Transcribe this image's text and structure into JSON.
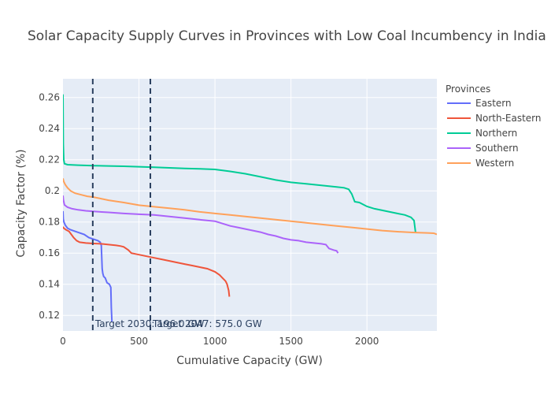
{
  "chart_data": {
    "type": "line",
    "title": "Solar Capacity Supply Curves in Provinces with Low Coal Incumbency in India",
    "xlabel": "Cumulative Capacity (GW)",
    "ylabel": "Capacity Factor (%)",
    "xlim": [
      0,
      2460
    ],
    "ylim": [
      0.11,
      0.272
    ],
    "xticks": [
      0,
      500,
      1000,
      1500,
      2000
    ],
    "xtick_labels": [
      "0",
      "500",
      "1000",
      "1500",
      "2000"
    ],
    "yticks": [
      0.12,
      0.14,
      0.16,
      0.18,
      0.2,
      0.22,
      0.24,
      0.26
    ],
    "ytick_labels": [
      "0.12",
      "0.14",
      "0.16",
      "0.18",
      "0.2",
      "0.22",
      "0.24",
      "0.26"
    ],
    "legend_title": "Provinces",
    "legend_position": "top-right outside",
    "grid": true,
    "series": [
      {
        "name": "Eastern",
        "color": "#636efa",
        "x": [
          0,
          2,
          6,
          15,
          30,
          50,
          80,
          110,
          140,
          170,
          200,
          230,
          245,
          252,
          255,
          258,
          262,
          268,
          278,
          290,
          305,
          315,
          318,
          322
        ],
        "y": [
          0.187,
          0.182,
          0.18,
          0.178,
          0.176,
          0.175,
          0.174,
          0.173,
          0.172,
          0.17,
          0.169,
          0.168,
          0.167,
          0.165,
          0.158,
          0.15,
          0.147,
          0.145,
          0.144,
          0.141,
          0.14,
          0.138,
          0.125,
          0.116
        ]
      },
      {
        "name": "North-Eastern",
        "color": "#ef553b",
        "x": [
          0,
          5,
          20,
          40,
          55,
          70,
          90,
          110,
          150,
          200,
          250,
          300,
          350,
          380,
          400,
          430,
          450,
          500,
          550,
          600,
          650,
          700,
          750,
          800,
          850,
          900,
          950,
          1000,
          1030,
          1050,
          1070,
          1080,
          1085,
          1090,
          1095
        ],
        "y": [
          0.177,
          0.176,
          0.175,
          0.174,
          0.172,
          0.17,
          0.168,
          0.167,
          0.1665,
          0.1662,
          0.166,
          0.1655,
          0.165,
          0.1645,
          0.164,
          0.162,
          0.16,
          0.159,
          0.158,
          0.157,
          0.156,
          0.155,
          0.154,
          0.153,
          0.152,
          0.151,
          0.15,
          0.148,
          0.146,
          0.144,
          0.142,
          0.14,
          0.138,
          0.136,
          0.132
        ]
      },
      {
        "name": "Northern",
        "color": "#00cc96",
        "x": [
          0,
          2,
          5,
          10,
          30,
          100,
          200,
          300,
          400,
          500,
          600,
          700,
          800,
          900,
          1000,
          1100,
          1200,
          1300,
          1400,
          1500,
          1600,
          1700,
          1800,
          1850,
          1880,
          1900,
          1920,
          1950,
          2000,
          2050,
          2100,
          2150,
          2200,
          2250,
          2290,
          2310,
          2320
        ],
        "y": [
          0.262,
          0.23,
          0.22,
          0.2175,
          0.2168,
          0.2165,
          0.2162,
          0.216,
          0.2158,
          0.2155,
          0.2152,
          0.2148,
          0.2144,
          0.2142,
          0.2138,
          0.2125,
          0.211,
          0.209,
          0.207,
          0.2055,
          0.2045,
          0.2035,
          0.2025,
          0.202,
          0.201,
          0.198,
          0.193,
          0.1925,
          0.19,
          0.1885,
          0.1875,
          0.1865,
          0.1855,
          0.1845,
          0.183,
          0.181,
          0.173
        ]
      },
      {
        "name": "Southern",
        "color": "#ab63fa",
        "x": [
          0,
          3,
          10,
          30,
          60,
          100,
          150,
          200,
          300,
          400,
          500,
          600,
          700,
          800,
          900,
          1000,
          1050,
          1100,
          1150,
          1200,
          1250,
          1300,
          1350,
          1400,
          1450,
          1500,
          1550,
          1600,
          1650,
          1700,
          1730,
          1750,
          1780,
          1800,
          1810
        ],
        "y": [
          0.197,
          0.194,
          0.191,
          0.1895,
          0.1885,
          0.1878,
          0.1872,
          0.1868,
          0.1862,
          0.1855,
          0.185,
          0.1845,
          0.1835,
          0.1825,
          0.1815,
          0.1805,
          0.179,
          0.1775,
          0.1765,
          0.1755,
          0.1745,
          0.1735,
          0.172,
          0.171,
          0.1695,
          0.1685,
          0.168,
          0.167,
          0.1665,
          0.166,
          0.1655,
          0.163,
          0.162,
          0.1615,
          0.16
        ]
      },
      {
        "name": "Western",
        "color": "#ffa15a",
        "x": [
          0,
          5,
          15,
          30,
          50,
          80,
          120,
          160,
          200,
          250,
          300,
          400,
          500,
          600,
          700,
          800,
          900,
          1000,
          1100,
          1200,
          1300,
          1400,
          1500,
          1600,
          1700,
          1800,
          1900,
          2000,
          2100,
          2200,
          2300,
          2400,
          2440,
          2460
        ],
        "y": [
          0.208,
          0.206,
          0.204,
          0.202,
          0.2,
          0.1985,
          0.1975,
          0.1965,
          0.196,
          0.195,
          0.194,
          0.1925,
          0.1908,
          0.1898,
          0.1888,
          0.1878,
          0.1865,
          0.1855,
          0.1845,
          0.1835,
          0.1825,
          0.1815,
          0.1805,
          0.1795,
          0.1785,
          0.1775,
          0.1765,
          0.1755,
          0.1745,
          0.1738,
          0.1733,
          0.173,
          0.1728,
          0.172
        ]
      }
    ],
    "vlines": [
      {
        "x": 196,
        "label": "Target 2030: 196.0 GW"
      },
      {
        "x": 575,
        "label": "Target 2047: 575.0 GW"
      }
    ]
  }
}
